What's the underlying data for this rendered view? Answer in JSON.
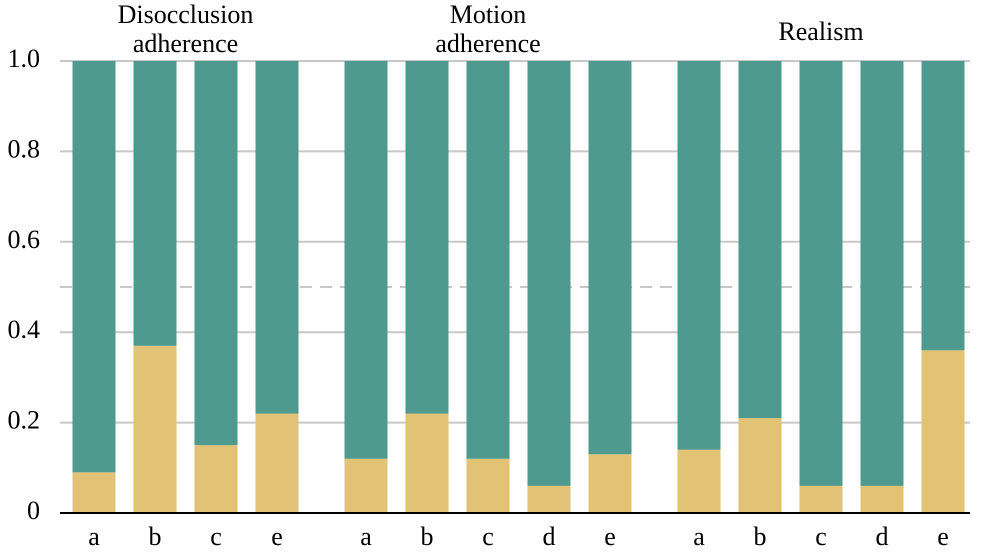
{
  "chart_data": {
    "type": "bar",
    "stacked": true,
    "groups": [
      {
        "label": [
          "Disocclusion",
          "adherence"
        ],
        "categories": [
          "a",
          "b",
          "c",
          "e"
        ]
      },
      {
        "label": [
          "Motion",
          "adherence"
        ],
        "categories": [
          "a",
          "b",
          "c",
          "d",
          "e"
        ]
      },
      {
        "label": [
          "Realism"
        ],
        "categories": [
          "a",
          "b",
          "c",
          "d",
          "e"
        ]
      }
    ],
    "series": [
      {
        "color": "#e2c275",
        "values": [
          0.09,
          0.37,
          0.15,
          0.22,
          0.12,
          0.22,
          0.12,
          0.06,
          0.13,
          0.14,
          0.21,
          0.06,
          0.06,
          0.36
        ]
      },
      {
        "color": "#4f9a8e",
        "values": [
          0.91,
          0.63,
          0.85,
          0.78,
          0.88,
          0.78,
          0.88,
          0.94,
          0.87,
          0.86,
          0.79,
          0.94,
          0.94,
          0.64
        ]
      }
    ],
    "ylim": [
      0,
      1
    ],
    "yticks": [
      0,
      0.2,
      0.4,
      0.6,
      0.8,
      {
        "value": 1,
        "label": "1.0"
      }
    ],
    "grid": true,
    "reference_line": 0.5
  }
}
